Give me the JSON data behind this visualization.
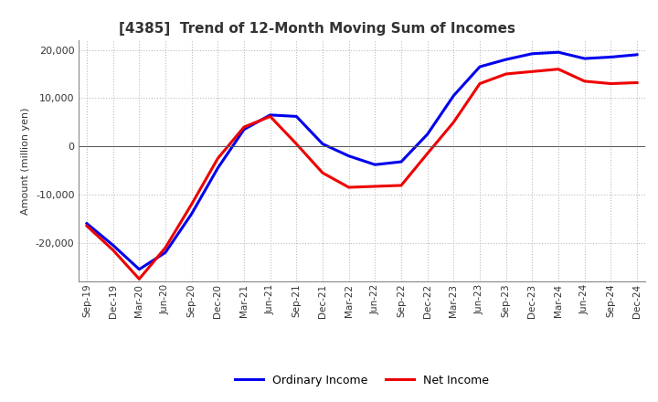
{
  "title": "[4385]  Trend of 12-Month Moving Sum of Incomes",
  "ylabel": "Amount (million yen)",
  "background_color": "#ffffff",
  "grid_color": "#bbbbbb",
  "plot_bg_color": "#ffffff",
  "ordinary_income_color": "#0000ee",
  "net_income_color": "#ee0000",
  "line_width": 2.2,
  "x_labels": [
    "Sep-19",
    "Dec-19",
    "Mar-20",
    "Jun-20",
    "Sep-20",
    "Dec-20",
    "Mar-21",
    "Jun-21",
    "Sep-21",
    "Dec-21",
    "Mar-22",
    "Jun-22",
    "Sep-22",
    "Dec-22",
    "Mar-23",
    "Jun-23",
    "Sep-23",
    "Dec-23",
    "Mar-24",
    "Jun-24",
    "Sep-24",
    "Dec-24"
  ],
  "ordinary_income": [
    -16000,
    -20500,
    -25500,
    -22000,
    -14000,
    -4500,
    3500,
    6500,
    6200,
    500,
    -2000,
    -3800,
    -3200,
    2500,
    10500,
    16500,
    18000,
    19200,
    19500,
    18200,
    18500,
    19000
  ],
  "net_income": [
    -16500,
    -21500,
    -27500,
    -21000,
    -12000,
    -2500,
    4000,
    6200,
    500,
    -5500,
    -8500,
    -8300,
    -8100,
    -1500,
    5000,
    13000,
    15000,
    15500,
    16000,
    13500,
    13000,
    13200
  ],
  "ylim": [
    -28000,
    22000
  ],
  "yticks": [
    -20000,
    -10000,
    0,
    10000,
    20000
  ],
  "legend_ordinary": "Ordinary Income",
  "legend_net": "Net Income"
}
